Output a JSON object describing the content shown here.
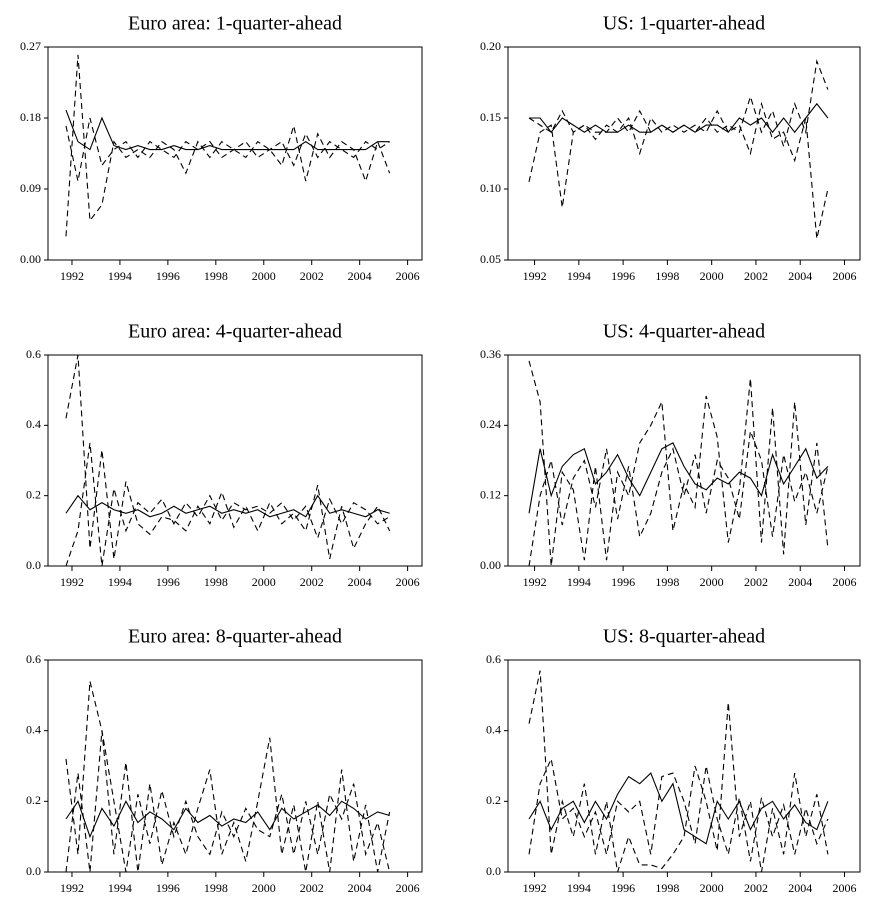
{
  "chart_data": [
    {
      "type": "line",
      "title": "Euro area: 1-quarter-ahead",
      "x": [
        1991.75,
        1992.25,
        1992.75,
        1993.25,
        1993.75,
        1994.25,
        1994.75,
        1995.25,
        1995.75,
        1996.25,
        1996.75,
        1997.25,
        1997.75,
        1998.25,
        1998.75,
        1999.25,
        1999.75,
        2000.25,
        2000.75,
        2001.25,
        2001.75,
        2002.25,
        2002.75,
        2003.25,
        2003.75,
        2004.25,
        2004.75,
        2005.25
      ],
      "xlim": [
        1991,
        2006.6
      ],
      "xticks": [
        1992,
        1994,
        1996,
        1998,
        2000,
        2002,
        2004,
        2006
      ],
      "ylim": [
        0,
        0.27
      ],
      "yticks": [
        {
          "value": 0,
          "label": "0.00"
        },
        0.09,
        0.18,
        0.27
      ],
      "series": [
        {
          "color": "#000000",
          "dash": null,
          "values": [
            0.19,
            0.15,
            0.14,
            0.18,
            0.145,
            0.14,
            0.145,
            0.14,
            0.14,
            0.145,
            0.14,
            0.14,
            0.145,
            0.14,
            0.14,
            0.14,
            0.14,
            0.14,
            0.14,
            0.14,
            0.15,
            0.14,
            0.14,
            0.14,
            0.14,
            0.14,
            0.15,
            0.15
          ]
        },
        {
          "color": "#000000",
          "dash": "6 4",
          "values": [
            0.03,
            0.26,
            0.05,
            0.07,
            0.15,
            0.13,
            0.14,
            0.13,
            0.15,
            0.14,
            0.11,
            0.15,
            0.13,
            0.15,
            0.14,
            0.13,
            0.15,
            0.14,
            0.12,
            0.17,
            0.1,
            0.16,
            0.13,
            0.15,
            0.14,
            0.1,
            0.15,
            0.11
          ]
        },
        {
          "color": "#000000",
          "dash": "6 4",
          "values": [
            0.17,
            0.1,
            0.18,
            0.12,
            0.14,
            0.15,
            0.13,
            0.15,
            0.14,
            0.13,
            0.15,
            0.14,
            0.15,
            0.13,
            0.14,
            0.15,
            0.13,
            0.14,
            0.15,
            0.12,
            0.16,
            0.13,
            0.15,
            0.14,
            0.13,
            0.15,
            0.14,
            0.15
          ]
        }
      ]
    },
    {
      "type": "line",
      "title": "US: 1-quarter-ahead",
      "x": [
        1991.75,
        1992.25,
        1992.75,
        1993.25,
        1993.75,
        1994.25,
        1994.75,
        1995.25,
        1995.75,
        1996.25,
        1996.75,
        1997.25,
        1997.75,
        1998.25,
        1998.75,
        1999.25,
        1999.75,
        2000.25,
        2000.75,
        2001.25,
        2001.75,
        2002.25,
        2002.75,
        2003.25,
        2003.75,
        2004.25,
        2004.75,
        2005.25
      ],
      "xlim": [
        1990.8,
        2006.7
      ],
      "xticks": [
        1992,
        1994,
        1996,
        1998,
        2000,
        2002,
        2004,
        2006
      ],
      "ylim": [
        0.05,
        0.2
      ],
      "yticks": [
        0.05,
        {
          "value": 0.1,
          "label": "0.10"
        },
        0.15,
        {
          "value": 0.2,
          "label": "0.20"
        }
      ],
      "series": [
        {
          "color": "#000000",
          "dash": null,
          "values": [
            0.15,
            0.15,
            0.14,
            0.15,
            0.145,
            0.14,
            0.145,
            0.14,
            0.14,
            0.145,
            0.14,
            0.14,
            0.145,
            0.14,
            0.145,
            0.14,
            0.145,
            0.145,
            0.14,
            0.15,
            0.145,
            0.15,
            0.14,
            0.15,
            0.14,
            0.15,
            0.16,
            0.15
          ]
        },
        {
          "color": "#000000",
          "dash": "6 4",
          "values": [
            0.105,
            0.14,
            0.145,
            0.087,
            0.14,
            0.145,
            0.135,
            0.145,
            0.14,
            0.15,
            0.125,
            0.15,
            0.14,
            0.145,
            0.14,
            0.145,
            0.14,
            0.155,
            0.14,
            0.145,
            0.125,
            0.16,
            0.135,
            0.14,
            0.12,
            0.15,
            0.065,
            0.1
          ]
        },
        {
          "color": "#000000",
          "dash": "6 4",
          "values": [
            0.15,
            0.145,
            0.14,
            0.155,
            0.14,
            0.145,
            0.14,
            0.14,
            0.15,
            0.14,
            0.155,
            0.14,
            0.145,
            0.14,
            0.145,
            0.14,
            0.15,
            0.14,
            0.145,
            0.14,
            0.165,
            0.14,
            0.155,
            0.13,
            0.16,
            0.14,
            0.19,
            0.17
          ]
        }
      ]
    },
    {
      "type": "line",
      "title": "Euro area: 4-quarter-ahead",
      "x": [
        1991.75,
        1992.25,
        1992.75,
        1993.25,
        1993.75,
        1994.25,
        1994.75,
        1995.25,
        1995.75,
        1996.25,
        1996.75,
        1997.25,
        1997.75,
        1998.25,
        1998.75,
        1999.25,
        1999.75,
        2000.25,
        2000.75,
        2001.25,
        2001.75,
        2002.25,
        2002.75,
        2003.25,
        2003.75,
        2004.25,
        2004.75,
        2005.25
      ],
      "xlim": [
        1991,
        2006.6
      ],
      "xticks": [
        1992,
        1994,
        1996,
        1998,
        2000,
        2002,
        2004,
        2006
      ],
      "ylim": [
        0,
        0.6
      ],
      "yticks": [
        {
          "value": 0,
          "label": "0.0"
        },
        0.2,
        0.4,
        0.6
      ],
      "series": [
        {
          "color": "#000000",
          "dash": null,
          "values": [
            0.15,
            0.2,
            0.16,
            0.18,
            0.16,
            0.15,
            0.16,
            0.14,
            0.15,
            0.17,
            0.15,
            0.16,
            0.17,
            0.15,
            0.16,
            0.15,
            0.16,
            0.14,
            0.15,
            0.16,
            0.14,
            0.2,
            0.15,
            0.16,
            0.15,
            0.14,
            0.16,
            0.15
          ]
        },
        {
          "color": "#000000",
          "dash": "6 4",
          "values": [
            0.42,
            0.6,
            0.05,
            0.33,
            0.02,
            0.24,
            0.12,
            0.09,
            0.14,
            0.13,
            0.1,
            0.17,
            0.12,
            0.21,
            0.11,
            0.17,
            0.1,
            0.18,
            0.12,
            0.15,
            0.1,
            0.23,
            0.02,
            0.17,
            0.05,
            0.12,
            0.17,
            0.1
          ]
        },
        {
          "color": "#000000",
          "dash": "6 4",
          "values": [
            0.0,
            0.1,
            0.35,
            0.0,
            0.22,
            0.1,
            0.18,
            0.15,
            0.19,
            0.12,
            0.18,
            0.14,
            0.2,
            0.13,
            0.18,
            0.16,
            0.17,
            0.15,
            0.18,
            0.13,
            0.17,
            0.08,
            0.19,
            0.12,
            0.18,
            0.16,
            0.12,
            0.14
          ]
        }
      ]
    },
    {
      "type": "line",
      "title": "US: 4-quarter-ahead",
      "x": [
        1991.75,
        1992.25,
        1992.75,
        1993.25,
        1993.75,
        1994.25,
        1994.75,
        1995.25,
        1995.75,
        1996.25,
        1996.75,
        1997.25,
        1997.75,
        1998.25,
        1998.75,
        1999.25,
        1999.75,
        2000.25,
        2000.75,
        2001.25,
        2001.75,
        2002.25,
        2002.75,
        2003.25,
        2003.75,
        2004.25,
        2004.75,
        2005.25
      ],
      "xlim": [
        1990.8,
        2006.7
      ],
      "xticks": [
        1992,
        1994,
        1996,
        1998,
        2000,
        2002,
        2004,
        2006
      ],
      "ylim": [
        0,
        0.36
      ],
      "yticks": [
        {
          "value": 0,
          "label": "0.00"
        },
        0.12,
        0.24,
        0.36
      ],
      "series": [
        {
          "color": "#000000",
          "dash": null,
          "values": [
            0.09,
            0.2,
            0.12,
            0.17,
            0.19,
            0.2,
            0.14,
            0.16,
            0.19,
            0.15,
            0.12,
            0.16,
            0.2,
            0.21,
            0.17,
            0.14,
            0.13,
            0.15,
            0.14,
            0.16,
            0.15,
            0.12,
            0.19,
            0.14,
            0.17,
            0.2,
            0.15,
            0.17
          ]
        },
        {
          "color": "#000000",
          "dash": "6 4",
          "values": [
            0.35,
            0.28,
            0.0,
            0.16,
            0.13,
            0.01,
            0.17,
            0.01,
            0.16,
            0.12,
            0.21,
            0.24,
            0.28,
            0.06,
            0.14,
            0.1,
            0.29,
            0.22,
            0.04,
            0.13,
            0.32,
            0.04,
            0.27,
            0.02,
            0.28,
            0.07,
            0.21,
            0.03
          ]
        },
        {
          "color": "#000000",
          "dash": "6 4",
          "values": [
            0.0,
            0.12,
            0.18,
            0.07,
            0.15,
            0.18,
            0.1,
            0.2,
            0.08,
            0.17,
            0.05,
            0.09,
            0.16,
            0.2,
            0.12,
            0.19,
            0.09,
            0.18,
            0.15,
            0.08,
            0.23,
            0.18,
            0.05,
            0.19,
            0.11,
            0.16,
            0.09,
            0.17
          ]
        }
      ]
    },
    {
      "type": "line",
      "title": "Euro area: 8-quarter-ahead",
      "x": [
        1991.75,
        1992.25,
        1992.75,
        1993.25,
        1993.75,
        1994.25,
        1994.75,
        1995.25,
        1995.75,
        1996.25,
        1996.75,
        1997.25,
        1997.75,
        1998.25,
        1998.75,
        1999.25,
        1999.75,
        2000.25,
        2000.75,
        2001.25,
        2001.75,
        2002.25,
        2002.75,
        2003.25,
        2003.75,
        2004.25,
        2004.75,
        2005.25
      ],
      "xlim": [
        1991,
        2006.6
      ],
      "xticks": [
        1992,
        1994,
        1996,
        1998,
        2000,
        2002,
        2004,
        2006
      ],
      "ylim": [
        0,
        0.6
      ],
      "yticks": [
        {
          "value": 0,
          "label": "0.0"
        },
        0.2,
        0.4,
        0.6
      ],
      "series": [
        {
          "color": "#000000",
          "dash": null,
          "values": [
            0.15,
            0.2,
            0.1,
            0.18,
            0.13,
            0.2,
            0.14,
            0.17,
            0.15,
            0.12,
            0.18,
            0.14,
            0.16,
            0.13,
            0.15,
            0.14,
            0.17,
            0.12,
            0.18,
            0.15,
            0.17,
            0.19,
            0.16,
            0.2,
            0.18,
            0.15,
            0.17,
            0.16
          ]
        },
        {
          "color": "#000000",
          "dash": "6 4",
          "values": [
            0.32,
            0.05,
            0.54,
            0.4,
            0.05,
            0.31,
            0.0,
            0.25,
            0.02,
            0.14,
            0.05,
            0.18,
            0.29,
            0.05,
            0.14,
            0.03,
            0.2,
            0.38,
            0.05,
            0.19,
            0.0,
            0.2,
            0.0,
            0.29,
            0.03,
            0.19,
            0.0,
            0.17
          ]
        },
        {
          "color": "#000000",
          "dash": "6 4",
          "values": [
            0.0,
            0.28,
            0.0,
            0.4,
            0.2,
            0.0,
            0.22,
            0.08,
            0.23,
            0.1,
            0.2,
            0.1,
            0.05,
            0.17,
            0.1,
            0.18,
            0.12,
            0.1,
            0.22,
            0.05,
            0.2,
            0.05,
            0.22,
            0.15,
            0.25,
            0.05,
            0.14,
            0.0
          ]
        }
      ]
    },
    {
      "type": "line",
      "title": "US: 8-quarter-ahead",
      "x": [
        1991.75,
        1992.25,
        1992.75,
        1993.25,
        1993.75,
        1994.25,
        1994.75,
        1995.25,
        1995.75,
        1996.25,
        1996.75,
        1997.25,
        1997.75,
        1998.25,
        1998.75,
        1999.25,
        1999.75,
        2000.25,
        2000.75,
        2001.25,
        2001.75,
        2002.25,
        2002.75,
        2003.25,
        2003.75,
        2004.25,
        2004.75,
        2005.25
      ],
      "xlim": [
        1990.8,
        2006.7
      ],
      "xticks": [
        1992,
        1994,
        1996,
        1998,
        2000,
        2002,
        2004,
        2006
      ],
      "ylim": [
        0,
        0.6
      ],
      "yticks": [
        {
          "value": 0,
          "label": "0.0"
        },
        0.2,
        0.4,
        0.6
      ],
      "series": [
        {
          "color": "#000000",
          "dash": null,
          "values": [
            0.15,
            0.2,
            0.12,
            0.18,
            0.2,
            0.14,
            0.2,
            0.15,
            0.22,
            0.27,
            0.25,
            0.28,
            0.2,
            0.25,
            0.12,
            0.1,
            0.08,
            0.2,
            0.15,
            0.2,
            0.12,
            0.18,
            0.2,
            0.15,
            0.19,
            0.14,
            0.12,
            0.2
          ]
        },
        {
          "color": "#000000",
          "dash": "6 4",
          "values": [
            0.42,
            0.57,
            0.05,
            0.2,
            0.1,
            0.25,
            0.05,
            0.2,
            0.0,
            0.1,
            0.02,
            0.02,
            0.01,
            0.05,
            0.1,
            0.3,
            0.2,
            0.06,
            0.48,
            0.1,
            0.2,
            0.0,
            0.18,
            0.05,
            0.28,
            0.1,
            0.22,
            0.05
          ]
        },
        {
          "color": "#000000",
          "dash": "6 4",
          "values": [
            0.05,
            0.25,
            0.32,
            0.15,
            0.18,
            0.1,
            0.17,
            0.05,
            0.2,
            0.17,
            0.2,
            0.05,
            0.27,
            0.28,
            0.2,
            0.08,
            0.3,
            0.15,
            0.05,
            0.21,
            0.03,
            0.21,
            0.1,
            0.19,
            0.05,
            0.18,
            0.08,
            0.15
          ]
        }
      ]
    }
  ]
}
